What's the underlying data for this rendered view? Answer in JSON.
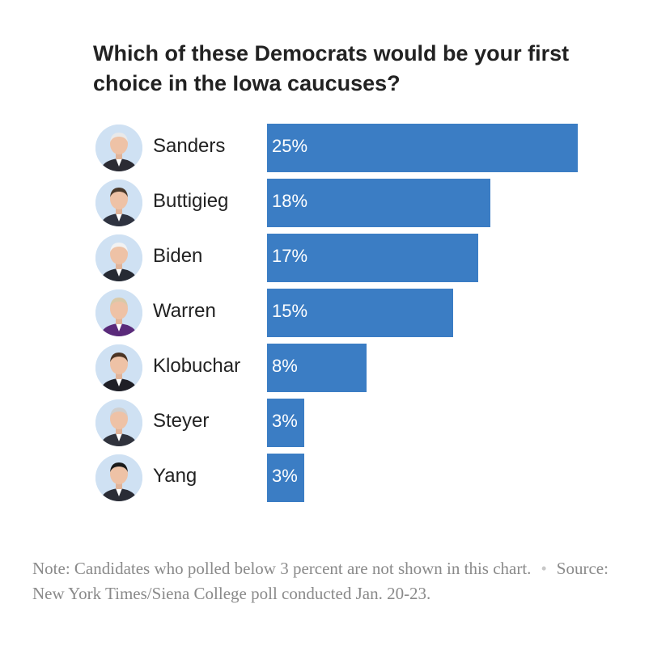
{
  "chart_data": {
    "type": "bar",
    "orientation": "horizontal",
    "title": "Which of these Democrats would be your first choice in the Iowa caucuses?",
    "categories": [
      "Sanders",
      "Buttigieg",
      "Biden",
      "Warren",
      "Klobuchar",
      "Steyer",
      "Yang"
    ],
    "values": [
      25,
      18,
      17,
      15,
      8,
      3,
      3
    ],
    "value_labels": [
      "25%",
      "18%",
      "17%",
      "15%",
      "8%",
      "3%",
      "3%"
    ],
    "xlim": [
      0,
      25
    ],
    "unit": "%",
    "bar_color": "#3b7dc4",
    "grid": false
  },
  "note": {
    "text": "Note: Candidates who polled below 3 percent are not shown in this chart.",
    "separator": "•",
    "source": "Source: New York Times/Siena College poll conducted Jan. 20-23."
  },
  "icons": [
    "candidate-photo-icon"
  ]
}
